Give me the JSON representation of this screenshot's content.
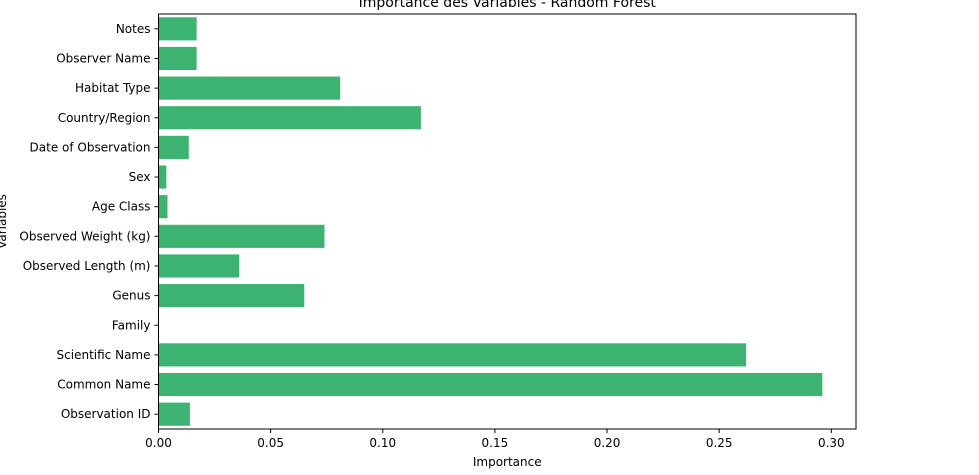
{
  "chart_data": {
    "type": "bar",
    "orientation": "horizontal",
    "title": "Importance des Variables - Random Forest",
    "xlabel": "Importance",
    "ylabel": "Variables",
    "categories": [
      "Observation ID",
      "Common Name",
      "Scientific Name",
      "Family",
      "Genus",
      "Observed Length (m)",
      "Observed Weight (kg)",
      "Age Class",
      "Sex",
      "Date of Observation",
      "Country/Region",
      "Habitat Type",
      "Observer Name",
      "Notes"
    ],
    "values": [
      0.014,
      0.296,
      0.262,
      0.0,
      0.065,
      0.036,
      0.074,
      0.004,
      0.0035,
      0.0135,
      0.117,
      0.081,
      0.017,
      0.017
    ],
    "xlim": [
      0,
      0.311
    ],
    "xticks": [
      0.0,
      0.05,
      0.1,
      0.15,
      0.2,
      0.25,
      0.3
    ],
    "xtick_labels": [
      "0.00",
      "0.05",
      "0.10",
      "0.15",
      "0.20",
      "0.25",
      "0.30"
    ],
    "bar_color": "#3cb371",
    "grid": false
  }
}
